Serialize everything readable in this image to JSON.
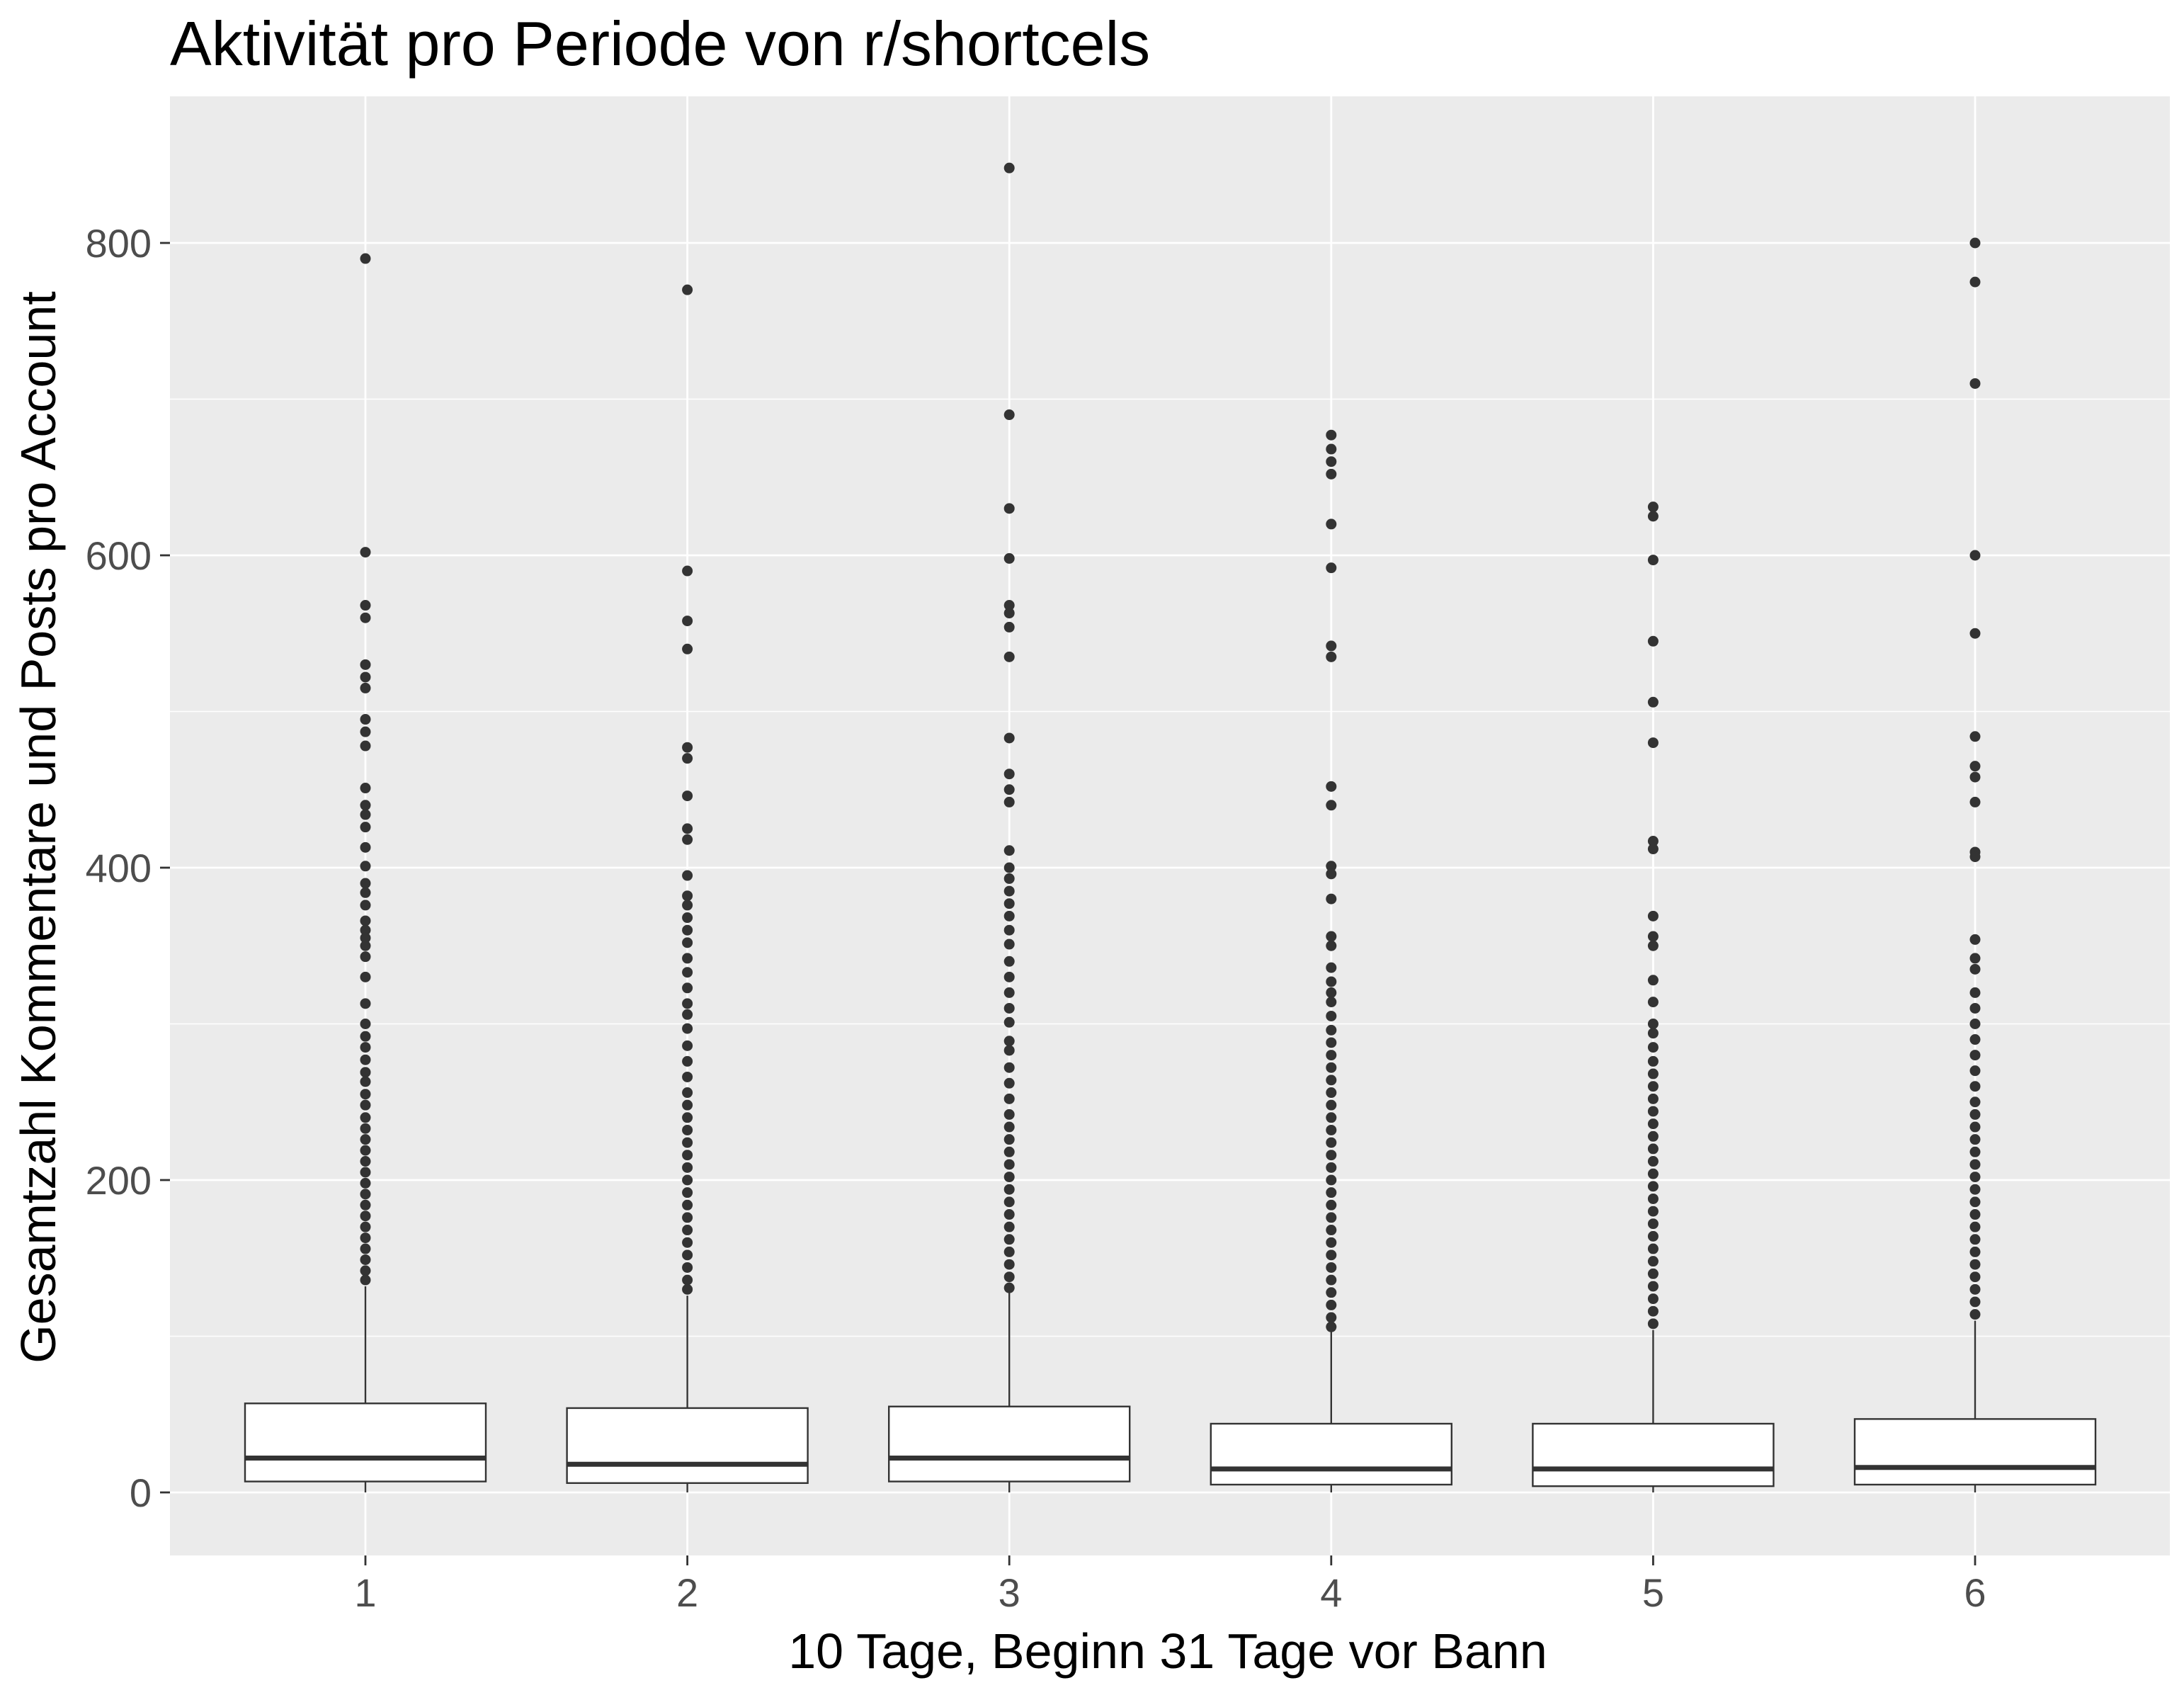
{
  "chart_data": {
    "type": "boxplot",
    "title": "Aktivität pro Periode von r/shortcels",
    "xlabel": "10 Tage, Beginn 31 Tage vor Bann",
    "ylabel": "Gesamtzahl Kommentare und Posts pro Account",
    "categories": [
      "1",
      "2",
      "3",
      "4",
      "5",
      "6"
    ],
    "yticks": [
      0,
      200,
      400,
      600,
      800
    ],
    "ytick_labels": [
      "0",
      "200",
      "400",
      "600",
      "800"
    ],
    "ylim": [
      -40,
      880
    ],
    "grid": true,
    "colors": {
      "panel": "#ebebeb",
      "grid": "#ffffff",
      "box_fill": "#ffffff",
      "box_line": "#333333",
      "point": "#333333",
      "tick_text": "#4d4d4d"
    },
    "boxes": [
      {
        "category": "1",
        "lower_whisker": 0,
        "q1": 7,
        "median": 22,
        "q3": 57,
        "upper_whisker": 132,
        "outliers": [
          790,
          602,
          568,
          560,
          530,
          522,
          515,
          495,
          487,
          478,
          451,
          440,
          434,
          426,
          413,
          401,
          390,
          384,
          376,
          366,
          360,
          355,
          350,
          343,
          330,
          313,
          300,
          292,
          285,
          277,
          269,
          263,
          255,
          248,
          240,
          233,
          226,
          219,
          212,
          205,
          198,
          191,
          184,
          177,
          170,
          163,
          156,
          149,
          142,
          136
        ]
      },
      {
        "category": "2",
        "lower_whisker": 0,
        "q1": 6,
        "median": 18,
        "q3": 54,
        "upper_whisker": 126,
        "outliers": [
          770,
          590,
          558,
          540,
          477,
          470,
          446,
          425,
          418,
          395,
          382,
          376,
          368,
          360,
          352,
          342,
          333,
          323,
          313,
          306,
          297,
          286,
          276,
          266,
          256,
          248,
          240,
          232,
          224,
          216,
          208,
          200,
          192,
          184,
          176,
          168,
          160,
          152,
          144,
          136,
          130
        ]
      },
      {
        "category": "3",
        "lower_whisker": 0,
        "q1": 7,
        "median": 22,
        "q3": 55,
        "upper_whisker": 128,
        "outliers": [
          848,
          690,
          630,
          598,
          568,
          563,
          554,
          535,
          483,
          460,
          450,
          442,
          411,
          400,
          393,
          385,
          377,
          369,
          360,
          351,
          340,
          330,
          320,
          310,
          301,
          289,
          283,
          272,
          262,
          252,
          242,
          234,
          226,
          218,
          210,
          202,
          194,
          186,
          178,
          170,
          162,
          154,
          146,
          138,
          131
        ]
      },
      {
        "category": "4",
        "lower_whisker": 0,
        "q1": 5,
        "median": 15,
        "q3": 44,
        "upper_whisker": 103,
        "outliers": [
          677,
          668,
          660,
          652,
          620,
          592,
          542,
          535,
          452,
          440,
          401,
          396,
          380,
          356,
          350,
          336,
          327,
          320,
          314,
          305,
          296,
          288,
          280,
          272,
          264,
          256,
          248,
          240,
          232,
          224,
          216,
          208,
          200,
          192,
          184,
          176,
          168,
          160,
          152,
          144,
          136,
          128,
          120,
          112,
          106
        ]
      },
      {
        "category": "5",
        "lower_whisker": 0,
        "q1": 4,
        "median": 15,
        "q3": 44,
        "upper_whisker": 104,
        "outliers": [
          631,
          625,
          597,
          545,
          506,
          480,
          417,
          412,
          369,
          356,
          350,
          328,
          314,
          300,
          294,
          285,
          276,
          268,
          260,
          252,
          244,
          236,
          228,
          220,
          212,
          204,
          196,
          188,
          180,
          172,
          164,
          156,
          148,
          140,
          132,
          124,
          116,
          108
        ]
      },
      {
        "category": "6",
        "lower_whisker": 0,
        "q1": 5,
        "median": 16,
        "q3": 47,
        "upper_whisker": 110,
        "outliers": [
          800,
          775,
          710,
          600,
          550,
          484,
          465,
          458,
          442,
          410,
          407,
          354,
          342,
          335,
          320,
          310,
          300,
          290,
          280,
          270,
          260,
          250,
          242,
          234,
          226,
          218,
          210,
          202,
          194,
          186,
          178,
          170,
          162,
          154,
          146,
          138,
          130,
          122,
          114
        ]
      }
    ]
  }
}
